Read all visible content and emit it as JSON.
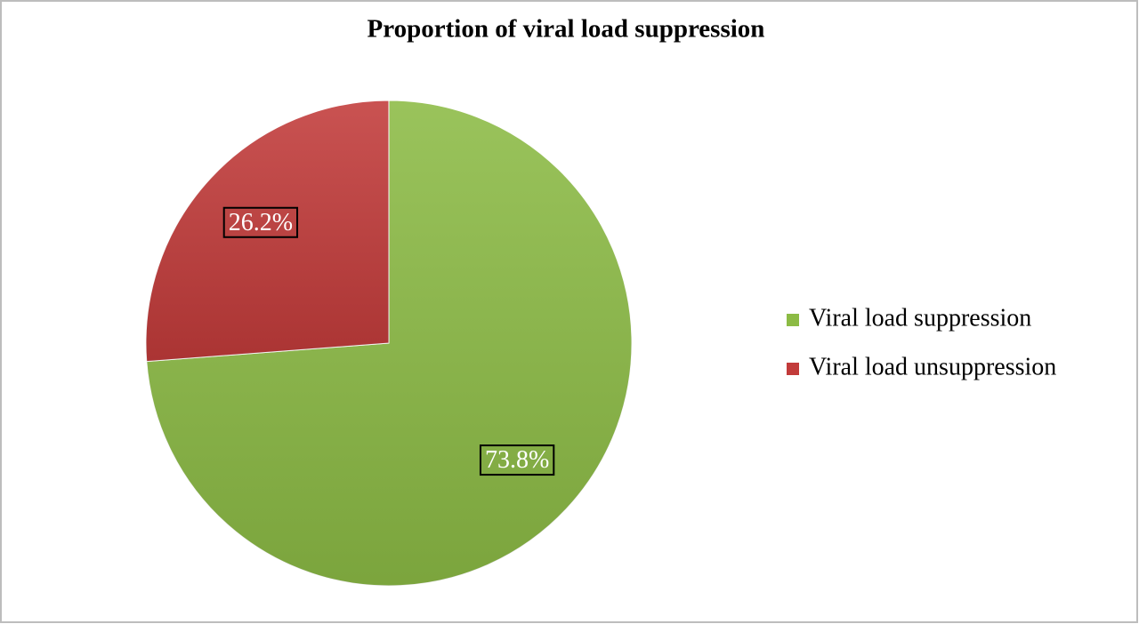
{
  "chart_data": {
    "type": "pie",
    "title": "Proportion of viral load suppression",
    "categories": [
      "Viral load suppression",
      "Viral load unsuppression"
    ],
    "values": [
      73.8,
      26.2
    ],
    "value_labels": [
      "73.8%",
      "26.2%"
    ],
    "colors": [
      "#8cbb45",
      "#c23b3a"
    ],
    "legend": "right"
  }
}
